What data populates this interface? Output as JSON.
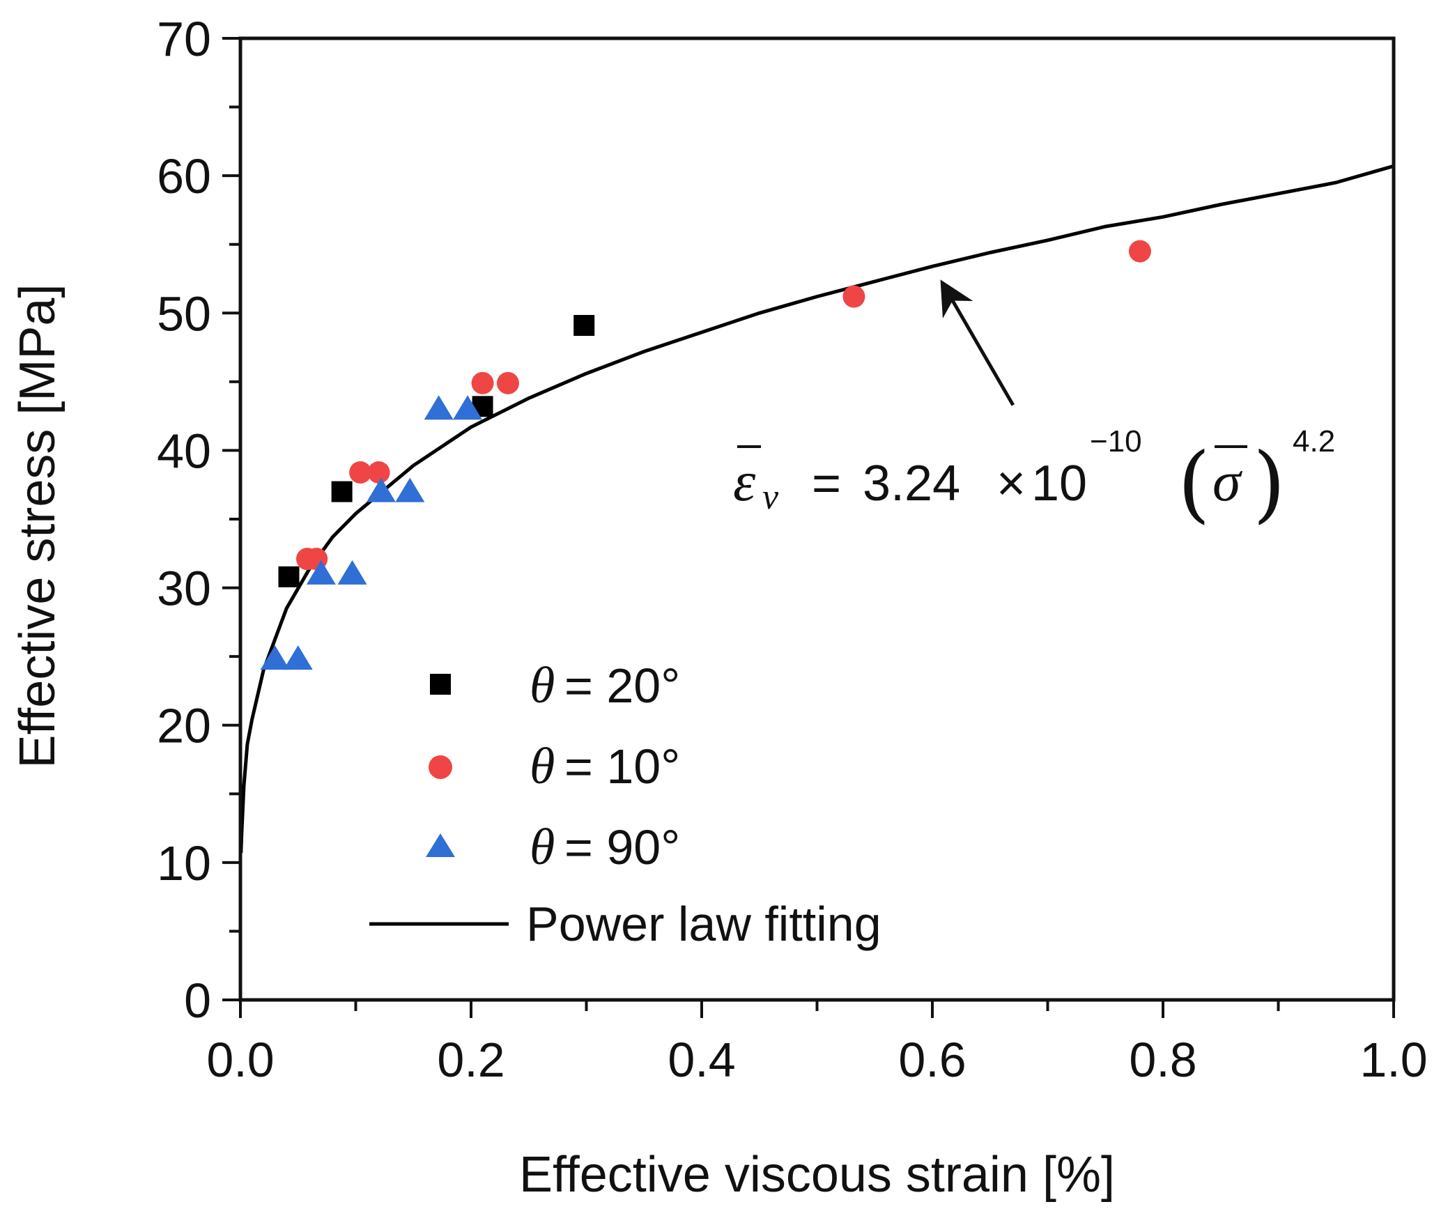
{
  "chart_data": {
    "type": "scatter",
    "title": "",
    "xlabel": "Effective viscous strain [%]",
    "ylabel": "Effective stress [MPa]",
    "xlim": [
      0,
      1.0
    ],
    "ylim": [
      0,
      70
    ],
    "x_ticks": [
      "0.0",
      "0.2",
      "0.4",
      "0.6",
      "0.8",
      "1.0"
    ],
    "y_ticks": [
      "0",
      "10",
      "20",
      "30",
      "40",
      "50",
      "60",
      "70"
    ],
    "grid": false,
    "legend_position": "bottom-left",
    "series": [
      {
        "name": "= 20°",
        "name_symbol": "θ",
        "marker": "square",
        "color": "#000000",
        "points": [
          [
            0.042,
            30.8
          ],
          [
            0.088,
            37.0
          ],
          [
            0.21,
            43.2
          ],
          [
            0.298,
            49.1
          ]
        ]
      },
      {
        "name": "= 10°",
        "name_symbol": "θ",
        "marker": "circle",
        "color": "#f04545",
        "points": [
          [
            0.058,
            32.1
          ],
          [
            0.066,
            32.1
          ],
          [
            0.104,
            38.4
          ],
          [
            0.12,
            38.4
          ],
          [
            0.21,
            44.9
          ],
          [
            0.232,
            44.9
          ],
          [
            0.532,
            51.2
          ],
          [
            0.78,
            54.5
          ]
        ]
      },
      {
        "name": "= 90°",
        "name_symbol": "θ",
        "marker": "triangle",
        "color": "#2f6fd6",
        "points": [
          [
            0.03,
            24.8
          ],
          [
            0.05,
            24.8
          ],
          [
            0.07,
            31.0
          ],
          [
            0.097,
            31.0
          ],
          [
            0.122,
            37.0
          ],
          [
            0.147,
            37.0
          ],
          [
            0.172,
            43.0
          ],
          [
            0.197,
            43.0
          ]
        ]
      },
      {
        "name": "Power law fitting",
        "type": "line",
        "color": "#000000",
        "x": [
          0.0005,
          0.001,
          0.003,
          0.006,
          0.01,
          0.02,
          0.04,
          0.06,
          0.08,
          0.1,
          0.15,
          0.2,
          0.25,
          0.3,
          0.35,
          0.4,
          0.45,
          0.5,
          0.55,
          0.6,
          0.65,
          0.7,
          0.75,
          0.8,
          0.85,
          0.9,
          0.95,
          1.0
        ],
        "y": [
          10.7,
          12.0,
          15.6,
          18.6,
          20.4,
          24.0,
          28.5,
          31.4,
          33.7,
          35.4,
          38.9,
          41.7,
          43.8,
          45.6,
          47.2,
          48.6,
          50.0,
          51.2,
          52.3,
          53.4,
          54.4,
          55.3,
          56.3,
          57.0,
          57.9,
          58.7,
          59.5,
          60.7
        ]
      }
    ],
    "annotation": {
      "lhs_symbol": "ε",
      "lhs_subscript": "v",
      "equals": "=",
      "coefficient": "3.24",
      "times": "×",
      "base": "10",
      "exponent_1": "−10",
      "paren_open": "(",
      "rhs_symbol": "σ",
      "paren_close": ")",
      "exponent_2": "4.2",
      "arrow_from": [
        0.67,
        43.3
      ],
      "arrow_to": [
        0.61,
        52.0
      ]
    }
  }
}
